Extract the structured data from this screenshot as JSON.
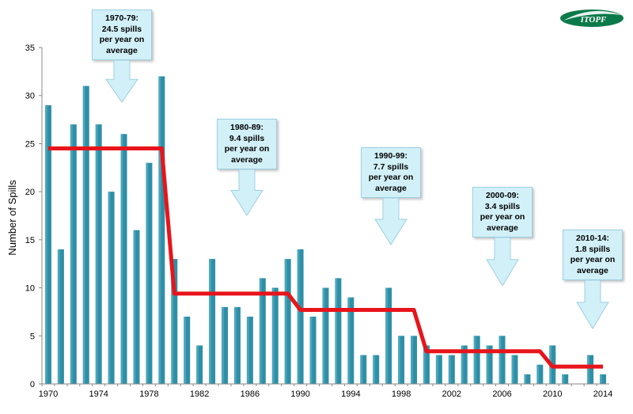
{
  "chart_data": {
    "type": "bar",
    "ylabel": "Number of Spills",
    "xlabel": "",
    "ylim": [
      0,
      35
    ],
    "yticks": [
      0,
      5,
      10,
      15,
      20,
      25,
      30,
      35
    ],
    "xticks": [
      "1970",
      "1974",
      "1978",
      "1982",
      "1986",
      "1990",
      "1994",
      "1998",
      "2002",
      "2006",
      "2010",
      "2014"
    ],
    "categories": [
      1970,
      1971,
      1972,
      1973,
      1974,
      1975,
      1976,
      1977,
      1978,
      1979,
      1980,
      1981,
      1982,
      1983,
      1984,
      1985,
      1986,
      1987,
      1988,
      1989,
      1990,
      1991,
      1992,
      1993,
      1994,
      1995,
      1996,
      1997,
      1998,
      1999,
      2000,
      2001,
      2002,
      2003,
      2004,
      2005,
      2006,
      2007,
      2008,
      2009,
      2010,
      2011,
      2012,
      2013,
      2014
    ],
    "values": [
      29,
      14,
      27,
      31,
      27,
      20,
      26,
      16,
      23,
      32,
      13,
      7,
      4,
      13,
      8,
      8,
      7,
      11,
      10,
      13,
      14,
      7,
      10,
      11,
      9,
      3,
      3,
      10,
      5,
      5,
      4,
      3,
      3,
      4,
      5,
      4,
      5,
      3,
      1,
      2,
      4,
      1,
      0,
      3,
      1
    ],
    "bar_color": "#2e8fa6",
    "average_line": {
      "color": "#e8141b",
      "segments": [
        {
          "from": 1970,
          "to": 1979,
          "value": 24.5
        },
        {
          "from": 1980,
          "to": 1989,
          "value": 9.4
        },
        {
          "from": 1990,
          "to": 1999,
          "value": 7.7
        },
        {
          "from": 2000,
          "to": 2009,
          "value": 3.4
        },
        {
          "from": 2010,
          "to": 2014,
          "value": 1.8
        }
      ]
    },
    "callouts": [
      {
        "period": "1970-79:",
        "line1": "24.5 spills",
        "line2": "per year on",
        "line3": "average"
      },
      {
        "period": "1980-89:",
        "line1": "9.4 spills",
        "line2": "per year on",
        "line3": "average"
      },
      {
        "period": "1990-99:",
        "line1": "7.7 spills",
        "line2": "per year on",
        "line3": "average"
      },
      {
        "period": "2000-09:",
        "line1": "3.4 spills",
        "line2": "per year on",
        "line3": "average"
      },
      {
        "period": "2010-14:",
        "line1": "1.8 spills",
        "line2": "per year on",
        "line3": "average"
      }
    ]
  },
  "logo": {
    "text": "ITOPF"
  }
}
